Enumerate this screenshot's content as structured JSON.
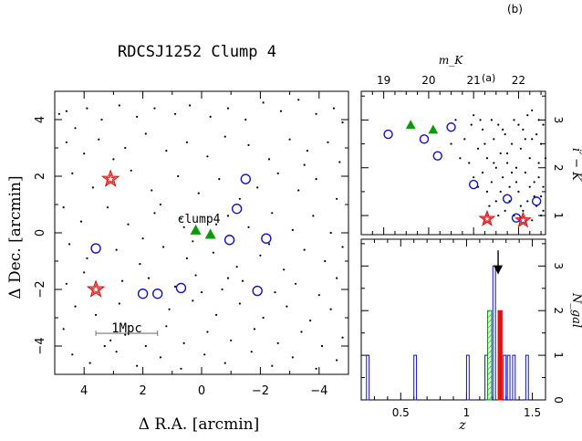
{
  "figure": {
    "corner_label": "(b)",
    "sub_label_a": "(a)"
  },
  "chart_data": [
    {
      "type": "scatter",
      "title": "RDCSJ1252 Clump 4",
      "xlabel": "Δ R.A.  [arcmin]",
      "ylabel": "Δ Dec.  [arcmin]",
      "xlim": [
        5,
        -5
      ],
      "ylim": [
        -5,
        5
      ],
      "xticks": [
        4,
        2,
        0,
        -2,
        -4
      ],
      "yticks": [
        -4,
        -2,
        0,
        2,
        4
      ],
      "xtick_labels": [
        "4",
        "2",
        "0",
        "−2",
        "−4"
      ],
      "ytick_labels": [
        "−4",
        "−2",
        "0",
        "2",
        "4"
      ],
      "annotations": [
        {
          "text": "clump4",
          "x": -0.2,
          "y": 0.45
        },
        {
          "text": "1Mpc",
          "x": 2.4,
          "y": -3.05
        }
      ],
      "scale_bar": {
        "x_from": 3.6,
        "x_to": 1.5,
        "y": -3.55,
        "label": "1Mpc"
      },
      "series": [
        {
          "marker": "dot",
          "color": "#000000",
          "points": [
            [
              4.85,
              4.2
            ],
            [
              4.6,
              4.3
            ],
            [
              4.3,
              3.7
            ],
            [
              3.9,
              4.4
            ],
            [
              3.4,
              4.0
            ],
            [
              2.8,
              4.5
            ],
            [
              2.2,
              4.1
            ],
            [
              1.6,
              4.4
            ],
            [
              0.9,
              4.2
            ],
            [
              0.4,
              4.5
            ],
            [
              -0.3,
              4.1
            ],
            [
              -0.9,
              4.4
            ],
            [
              -1.5,
              4.0
            ],
            [
              -2.1,
              4.6
            ],
            [
              -2.7,
              4.3
            ],
            [
              -3.3,
              4.7
            ],
            [
              -3.9,
              4.2
            ],
            [
              -4.5,
              4.4
            ],
            [
              -4.8,
              3.9
            ],
            [
              4.6,
              3.2
            ],
            [
              4.0,
              2.8
            ],
            [
              3.5,
              3.3
            ],
            [
              2.6,
              3.0
            ],
            [
              1.9,
              3.5
            ],
            [
              1.2,
              2.9
            ],
            [
              0.5,
              3.2
            ],
            [
              -0.2,
              2.7
            ],
            [
              -0.8,
              3.4
            ],
            [
              -1.6,
              3.1
            ],
            [
              -2.3,
              2.6
            ],
            [
              -3.0,
              3.3
            ],
            [
              -3.6,
              2.9
            ],
            [
              -4.3,
              3.2
            ],
            [
              -4.7,
              2.5
            ],
            [
              4.4,
              2.1
            ],
            [
              3.7,
              1.6
            ],
            [
              2.4,
              2.2
            ],
            [
              1.7,
              1.5
            ],
            [
              0.8,
              2.0
            ],
            [
              0.1,
              1.4
            ],
            [
              -0.6,
              1.9
            ],
            [
              -1.9,
              1.6
            ],
            [
              -2.6,
              2.1
            ],
            [
              -3.3,
              1.5
            ],
            [
              -3.9,
              1.9
            ],
            [
              -4.6,
              1.2
            ],
            [
              4.7,
              0.9
            ],
            [
              4.1,
              0.4
            ],
            [
              3.2,
              0.9
            ],
            [
              2.5,
              0.3
            ],
            [
              1.6,
              0.7
            ],
            [
              0.7,
              0.5
            ],
            [
              -0.9,
              0.6
            ],
            [
              -1.6,
              0.2
            ],
            [
              -2.4,
              0.7
            ],
            [
              -3.1,
              0.1
            ],
            [
              -3.8,
              0.6
            ],
            [
              -4.4,
              0.0
            ],
            [
              4.5,
              -0.4
            ],
            [
              3.9,
              -0.9
            ],
            [
              2.9,
              -0.6
            ],
            [
              2.1,
              -1.1
            ],
            [
              1.3,
              -0.5
            ],
            [
              0.5,
              -0.9
            ],
            [
              -0.4,
              -0.7
            ],
            [
              -1.2,
              -1.2
            ],
            [
              -2.0,
              -0.8
            ],
            [
              -2.8,
              -1.3
            ],
            [
              -3.5,
              -0.6
            ],
            [
              -4.2,
              -1.0
            ],
            [
              -4.8,
              -0.5
            ],
            [
              4.6,
              -1.8
            ],
            [
              4.0,
              -1.4
            ],
            [
              2.7,
              -1.7
            ],
            [
              1.8,
              -1.6
            ],
            [
              0.9,
              -1.9
            ],
            [
              0.2,
              -1.5
            ],
            [
              -0.7,
              -2.0
            ],
            [
              -1.4,
              -1.7
            ],
            [
              -2.5,
              -2.1
            ],
            [
              -3.2,
              -1.8
            ],
            [
              -4.0,
              -2.2
            ],
            [
              -4.6,
              -1.6
            ],
            [
              4.3,
              -2.6
            ],
            [
              3.6,
              -2.9
            ],
            [
              2.8,
              -2.5
            ],
            [
              1.1,
              -2.7
            ],
            [
              0.3,
              -2.4
            ],
            [
              -0.5,
              -2.9
            ],
            [
              -1.3,
              -2.5
            ],
            [
              -2.1,
              -3.0
            ],
            [
              -2.9,
              -2.6
            ],
            [
              -3.7,
              -3.1
            ],
            [
              -4.4,
              -2.7
            ],
            [
              4.7,
              -3.4
            ],
            [
              3.1,
              -3.8
            ],
            [
              1.2,
              -3.3
            ],
            [
              0.6,
              -3.9
            ],
            [
              -0.2,
              -3.5
            ],
            [
              -1.0,
              -3.8
            ],
            [
              -1.8,
              -3.4
            ],
            [
              -2.6,
              -3.9
            ],
            [
              -3.4,
              -3.5
            ],
            [
              -4.1,
              -4.0
            ],
            [
              -4.8,
              -3.7
            ],
            [
              4.4,
              -4.3
            ],
            [
              3.8,
              -4.6
            ],
            [
              2.9,
              -4.2
            ],
            [
              2.2,
              -4.7
            ],
            [
              1.4,
              -4.4
            ],
            [
              0.7,
              -4.8
            ],
            [
              -0.1,
              -4.3
            ],
            [
              -0.8,
              -4.6
            ],
            [
              -1.7,
              -4.2
            ],
            [
              -2.4,
              -4.7
            ],
            [
              -3.1,
              -4.4
            ],
            [
              -3.9,
              -4.8
            ],
            [
              -4.6,
              -4.5
            ],
            [
              3.3,
              -4.0
            ],
            [
              2.6,
              -3.6
            ],
            [
              1.9,
              -4.0
            ],
            [
              0.0,
              -2.1
            ],
            [
              -0.9,
              -1.6
            ],
            [
              1.4,
              1.0
            ],
            [
              -1.3,
              1.2
            ],
            [
              2.0,
              -0.2
            ],
            [
              -2.3,
              -0.4
            ],
            [
              3.0,
              2.6
            ],
            [
              -3.5,
              2.4
            ],
            [
              0.3,
              -0.3
            ],
            [
              0.6,
              0.2
            ],
            [
              -0.5,
              0.3
            ]
          ]
        },
        {
          "name": "",
          "marker": "open-circle",
          "color": "#1010c8",
          "points": [
            [
              -1.5,
              1.9
            ],
            [
              -1.2,
              0.85
            ],
            [
              -0.95,
              -0.25
            ],
            [
              -2.2,
              -0.2
            ],
            [
              3.6,
              -0.55
            ],
            [
              2.0,
              -2.15
            ],
            [
              1.5,
              -2.15
            ],
            [
              0.7,
              -1.95
            ],
            [
              -1.9,
              -2.05
            ]
          ]
        },
        {
          "name": "",
          "marker": "filled-triangle",
          "color": "#0a9a0a",
          "points": [
            [
              0.2,
              0.1
            ],
            [
              -0.3,
              -0.05
            ]
          ]
        },
        {
          "name": "",
          "marker": "open-star",
          "color": "#e01010",
          "points": [
            [
              3.1,
              1.9
            ],
            [
              3.6,
              -2.0
            ]
          ]
        }
      ]
    },
    {
      "type": "scatter",
      "title": "",
      "xlabel_top": "m_K",
      "xlim_top": [
        18.5,
        22.6
      ],
      "xticks_top": [
        19,
        20,
        21,
        22
      ],
      "ylabel_right": "i′ − K",
      "ylim": [
        0.6,
        3.6
      ],
      "yticks_right": [
        1,
        2,
        3
      ],
      "series": [
        {
          "marker": "dot",
          "color": "#000000",
          "points": [
            [
              20.6,
              3.0
            ],
            [
              20.8,
              2.6
            ],
            [
              21.0,
              3.1
            ],
            [
              21.1,
              2.4
            ],
            [
              21.2,
              2.8
            ],
            [
              21.3,
              2.2
            ],
            [
              21.4,
              3.0
            ],
            [
              21.45,
              2.6
            ],
            [
              21.5,
              2.0
            ],
            [
              21.55,
              2.9
            ],
            [
              21.6,
              2.3
            ],
            [
              21.65,
              1.8
            ],
            [
              21.7,
              2.7
            ],
            [
              21.75,
              2.1
            ],
            [
              21.8,
              1.6
            ],
            [
              21.85,
              2.5
            ],
            [
              21.9,
              3.0
            ],
            [
              21.95,
              2.0
            ],
            [
              22.0,
              1.5
            ],
            [
              22.05,
              2.4
            ],
            [
              22.1,
              2.8
            ],
            [
              22.15,
              1.9
            ],
            [
              22.2,
              1.3
            ],
            [
              22.25,
              2.2
            ],
            [
              22.3,
              2.6
            ],
            [
              22.35,
              1.7
            ],
            [
              22.4,
              1.2
            ],
            [
              22.45,
              2.1
            ],
            [
              22.5,
              2.5
            ],
            [
              22.55,
              1.6
            ],
            [
              21.3,
              1.5
            ],
            [
              21.5,
              1.3
            ],
            [
              21.7,
              1.1
            ],
            [
              21.9,
              1.0
            ],
            [
              22.1,
              1.1
            ],
            [
              22.3,
              0.9
            ],
            [
              22.5,
              1.0
            ],
            [
              21.2,
              1.9
            ],
            [
              21.4,
              1.7
            ],
            [
              21.6,
              1.5
            ],
            [
              21.8,
              1.3
            ],
            [
              22.0,
              2.9
            ],
            [
              22.2,
              3.1
            ],
            [
              22.4,
              2.7
            ],
            [
              20.9,
              2.1
            ],
            [
              21.0,
              1.8
            ],
            [
              21.1,
              1.6
            ],
            [
              22.5,
              1.4
            ],
            [
              22.55,
              2.9
            ],
            [
              22.3,
              3.2
            ],
            [
              21.25,
              2.5
            ],
            [
              21.35,
              1.2
            ],
            [
              21.55,
              1.0
            ],
            [
              21.75,
              2.3
            ],
            [
              21.95,
              1.7
            ],
            [
              22.15,
              2.6
            ],
            [
              22.35,
              1.4
            ],
            [
              22.45,
              3.0
            ],
            [
              21.15,
              3.0
            ],
            [
              21.45,
              2.1
            ],
            [
              21.65,
              2.8
            ],
            [
              21.85,
              1.9
            ],
            [
              22.05,
              1.2
            ],
            [
              22.25,
              1.6
            ],
            [
              22.45,
              1.8
            ],
            [
              20.7,
              2.2
            ],
            [
              20.5,
              2.5
            ],
            [
              20.95,
              2.9
            ],
            [
              22.55,
              1.1
            ],
            [
              22.6,
              2.2
            ]
          ]
        },
        {
          "marker": "open-circle",
          "color": "#1010c8",
          "points": [
            [
              19.1,
              2.7
            ],
            [
              19.9,
              2.6
            ],
            [
              20.2,
              2.25
            ],
            [
              20.5,
              2.85
            ],
            [
              21.0,
              1.65
            ],
            [
              21.75,
              1.35
            ],
            [
              22.4,
              1.3
            ],
            [
              21.95,
              0.95
            ]
          ]
        },
        {
          "marker": "filled-triangle",
          "color": "#0a9a0a",
          "points": [
            [
              19.6,
              2.9
            ],
            [
              20.1,
              2.8
            ]
          ]
        },
        {
          "marker": "open-star",
          "color": "#e01010",
          "points": [
            [
              21.3,
              0.93
            ],
            [
              22.1,
              0.9
            ]
          ]
        }
      ]
    },
    {
      "type": "bar",
      "title": "",
      "xlabel": "z",
      "ylabel_right": "N_gal",
      "xlim": [
        0.2,
        1.6
      ],
      "ylim": [
        0,
        3.6
      ],
      "xticks": [
        0.5,
        1,
        1.5
      ],
      "xtick_labels": [
        "0.5",
        "1",
        "1.5"
      ],
      "yticks_right": [
        0,
        1,
        2,
        3
      ],
      "arrow": {
        "x": 1.24,
        "from_y": 3.35,
        "to_y": 2.85
      },
      "series": [
        {
          "name": "",
          "style": "blue-outline",
          "color": "#1010c8",
          "bars": [
            [
              0.24,
              0.26,
              1
            ],
            [
              0.6,
              0.62,
              1
            ],
            [
              1.0,
              1.02,
              1
            ],
            [
              1.14,
              1.16,
              1
            ],
            [
              1.2,
              1.22,
              3
            ],
            [
              1.28,
              1.3,
              1
            ],
            [
              1.31,
              1.33,
              1
            ],
            [
              1.35,
              1.37,
              1
            ],
            [
              1.45,
              1.47,
              1
            ]
          ]
        },
        {
          "name": "",
          "style": "green-hatch",
          "color": "#0a9a0a",
          "bars": [
            [
              1.16,
              1.19,
              2
            ]
          ]
        },
        {
          "name": "",
          "style": "red-fill",
          "color": "#e01010",
          "bars": [
            [
              1.24,
              1.27,
              2
            ]
          ]
        }
      ]
    }
  ]
}
